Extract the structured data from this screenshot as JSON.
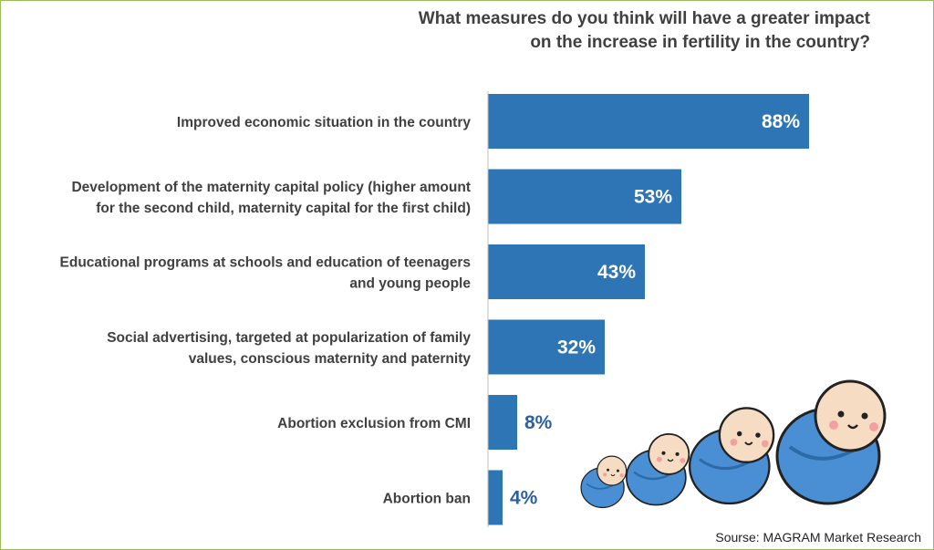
{
  "chart_data": {
    "type": "bar",
    "orientation": "horizontal",
    "title_lines": [
      "What measures do you think will have a greater impact",
      "on the increase in fertility in the country?"
    ],
    "categories": [
      [
        "Improved economic situation in the country"
      ],
      [
        "Development of the maternity capital policy (higher amount",
        "for the second child, maternity capital for the first child)"
      ],
      [
        "Educational programs at schools and education of teenagers",
        "and young people"
      ],
      [
        "Social advertising, targeted at popularization of family",
        "values, conscious maternity and paternity"
      ],
      [
        "Abortion exclusion from CMI"
      ],
      [
        "Abortion ban"
      ]
    ],
    "values": [
      88,
      53,
      43,
      32,
      8,
      4
    ],
    "value_labels": [
      "88%",
      "53%",
      "43%",
      "32%",
      "8%",
      "4%"
    ],
    "unit": "%",
    "xlim": [
      0,
      100
    ],
    "grid": false,
    "legend": "none",
    "bar_color": "#2e75b6",
    "label_color_inside": "#ffffff",
    "label_color_outside": "#2e5f9e"
  },
  "source": "Sourse: MAGRAM Market Research",
  "illustration": {
    "icon": "swaddled-babies-icon",
    "skin_color": "#f7dcc4",
    "blanket_color": "#4a8fd4"
  }
}
